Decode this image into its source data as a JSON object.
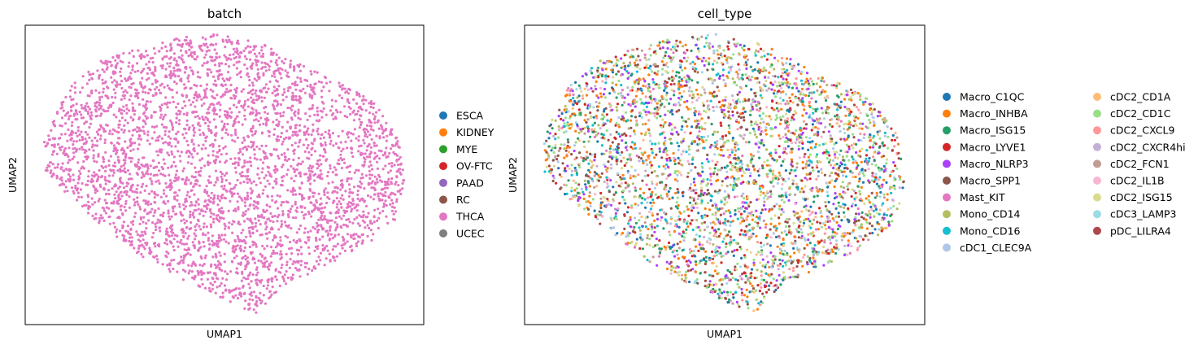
{
  "chart_data": [
    {
      "type": "scatter",
      "title": "batch",
      "xlabel": "UMAP1",
      "ylabel": "UMAP2",
      "ticks": "none",
      "grid": false,
      "legend_placement": "right",
      "n_points_approx": 3800,
      "shape": "blob",
      "series": [
        {
          "name": "ESCA",
          "color": "#1f77b4",
          "share": 0
        },
        {
          "name": "KIDNEY",
          "color": "#ff7f0e",
          "share": 0
        },
        {
          "name": "MYE",
          "color": "#2ca02c",
          "share": 0
        },
        {
          "name": "OV-FTC",
          "color": "#d62728",
          "share": 0
        },
        {
          "name": "PAAD",
          "color": "#9467bd",
          "share": 0
        },
        {
          "name": "RC",
          "color": "#8c564b",
          "share": 0
        },
        {
          "name": "THCA",
          "color": "#e377c2",
          "share": 1
        },
        {
          "name": "UCEC",
          "color": "#7f7f7f",
          "share": 0
        }
      ]
    },
    {
      "type": "scatter",
      "title": "cell_type",
      "xlabel": "UMAP1",
      "ylabel": "UMAP2",
      "ticks": "none",
      "grid": false,
      "legend_placement": "right",
      "legend_columns": 2,
      "n_points_approx": 3800,
      "shape": "blob",
      "series": [
        {
          "name": "Macro_C1QC",
          "color": "#1f77b4",
          "share": 0.07
        },
        {
          "name": "Macro_INHBA",
          "color": "#ff7f0e",
          "share": 0.11
        },
        {
          "name": "Macro_ISG15",
          "color": "#279e68",
          "share": 0.06
        },
        {
          "name": "Macro_LYVE1",
          "color": "#d62728",
          "share": 0.05
        },
        {
          "name": "Macro_NLRP3",
          "color": "#aa40fc",
          "share": 0.08
        },
        {
          "name": "Macro_SPP1",
          "color": "#8c564b",
          "share": 0.07
        },
        {
          "name": "Mast_KIT",
          "color": "#e377c2",
          "share": 0.03
        },
        {
          "name": "Mono_CD14",
          "color": "#b5bd61",
          "share": 0.05
        },
        {
          "name": "Mono_CD16",
          "color": "#17becf",
          "share": 0.05
        },
        {
          "name": "cDC1_CLEC9A",
          "color": "#aec7e8",
          "share": 0.03
        },
        {
          "name": "cDC2_CD1A",
          "color": "#ffbb78",
          "share": 0.04
        },
        {
          "name": "cDC2_CD1C",
          "color": "#98df8a",
          "share": 0.1
        },
        {
          "name": "cDC2_CXCL9",
          "color": "#ff9896",
          "share": 0.04
        },
        {
          "name": "cDC2_CXCR4hi",
          "color": "#c5b0d5",
          "share": 0.03
        },
        {
          "name": "cDC2_FCN1",
          "color": "#c49c94",
          "share": 0.04
        },
        {
          "name": "cDC2_IL1B",
          "color": "#f7b6d2",
          "share": 0.03
        },
        {
          "name": "cDC2_ISG15",
          "color": "#dbdb8d",
          "share": 0.05
        },
        {
          "name": "cDC3_LAMP3",
          "color": "#9edae5",
          "share": 0.03
        },
        {
          "name": "pDC_LILRA4",
          "color": "#ad494a",
          "share": 0.04
        }
      ]
    }
  ]
}
